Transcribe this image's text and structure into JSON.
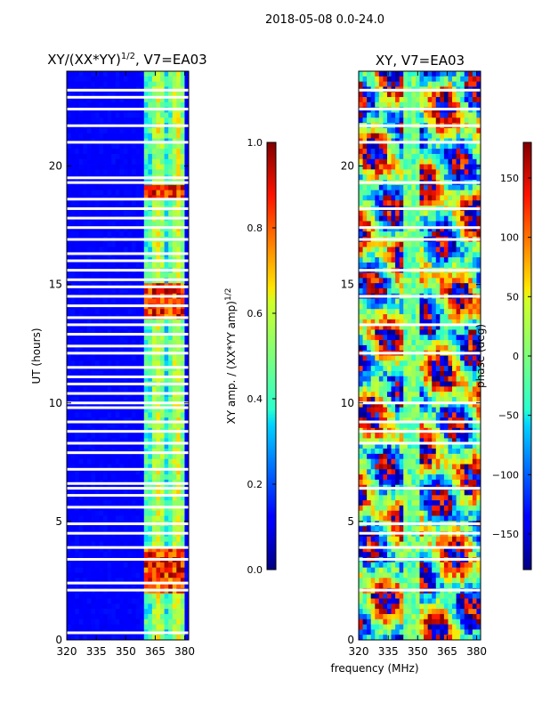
{
  "suptitle": "2018-05-08 0.0-24.0",
  "chart_data": [
    {
      "type": "heatmap",
      "title": "XY/(XX*YY)^1/2, V7=EA03",
      "xlabel": "",
      "ylabel": "UT (hours)",
      "xlim": [
        320,
        382
      ],
      "ylim": [
        0,
        24
      ],
      "xticks": [
        "320",
        "335",
        "350",
        "365",
        "380"
      ],
      "yticks": [
        "0",
        "5",
        "10",
        "15",
        "20"
      ],
      "colorbar": {
        "label": "XY amp. / (XX*YY amp)^1/2",
        "range": [
          0.0,
          1.0
        ],
        "ticks": [
          "0.0",
          "0.2",
          "0.4",
          "0.6",
          "0.8",
          "1.0"
        ]
      },
      "signal_band_mhz": [
        360,
        380
      ],
      "flagged_ut_hours": [
        0.3,
        2.1,
        2.4,
        3.4,
        3.9,
        4.5,
        4.9,
        5.6,
        6.1,
        6.4,
        6.6,
        7.2,
        7.9,
        8.3,
        8.8,
        9.2,
        9.8,
        10.0,
        10.4,
        10.8,
        11.1,
        11.5,
        12.1,
        12.4,
        12.9,
        13.3,
        13.6,
        14.1,
        14.5,
        14.9,
        15.2,
        15.6,
        16.0,
        16.3,
        16.9,
        17.4,
        17.8,
        18.2,
        18.6,
        19.3,
        19.5,
        21.0,
        21.7,
        22.4,
        22.9,
        23.2
      ]
    },
    {
      "type": "heatmap",
      "title": "XY, V7=EA03",
      "xlabel": "frequency (MHz)",
      "ylabel": "",
      "xlim": [
        320,
        382
      ],
      "ylim": [
        0,
        24
      ],
      "xticks": [
        "320",
        "335",
        "350",
        "365",
        "380"
      ],
      "yticks": [
        "0",
        "5",
        "10",
        "15",
        "20"
      ],
      "colorbar": {
        "label": "phase (deg)",
        "range": [
          -180,
          180
        ],
        "ticks": [
          "−150",
          "−100",
          "−50",
          "0",
          "50",
          "100",
          "150"
        ],
        "tick_values": [
          -150,
          -100,
          -50,
          0,
          50,
          100,
          150
        ]
      },
      "flagged_ut_hours": [
        2.1,
        3.4,
        3.9,
        4.5,
        4.9,
        6.4,
        8.3,
        8.8,
        9.2,
        10.0,
        12.1,
        13.3,
        14.5,
        15.6,
        16.9,
        17.4,
        18.2,
        19.3,
        21.0,
        21.7,
        22.4,
        23.2
      ]
    }
  ]
}
